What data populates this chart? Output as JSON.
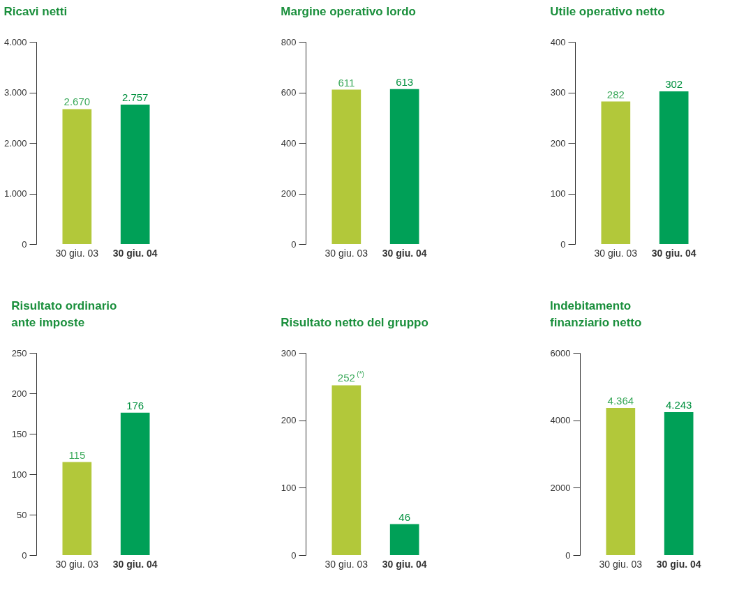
{
  "chart_data": [
    {
      "type": "bar",
      "title": "Ricavi netti",
      "categories": [
        "30 giu. 03",
        "30 giu. 04"
      ],
      "values": [
        2670,
        2757
      ],
      "colors": [
        "#b2c83a",
        "#00a057"
      ],
      "value_labels": [
        "2.670",
        "2.757"
      ],
      "ylim": [
        0,
        4000
      ],
      "yticks": [
        0,
        {
          "value": 1000,
          "label": "1.000"
        },
        {
          "value": 2000,
          "label": "2.000"
        },
        {
          "value": 3000,
          "label": "3.000"
        },
        {
          "value": 4000,
          "label": "4.000"
        }
      ]
    },
    {
      "type": "bar",
      "title": "Margine operativo lordo",
      "categories": [
        "30 giu. 03",
        "30 giu. 04"
      ],
      "values": [
        611,
        613
      ],
      "colors": [
        "#b2c83a",
        "#00a057"
      ],
      "value_labels": [
        "611",
        "613"
      ],
      "ylim": [
        0,
        800
      ],
      "yticks": [
        0,
        200,
        400,
        600,
        800
      ]
    },
    {
      "type": "bar",
      "title": "Utile operativo netto",
      "categories": [
        "30 giu. 03",
        "30 giu. 04"
      ],
      "values": [
        282,
        302
      ],
      "colors": [
        "#b2c83a",
        "#00a057"
      ],
      "value_labels": [
        "282",
        "302"
      ],
      "ylim": [
        0,
        400
      ],
      "yticks": [
        0,
        100,
        200,
        300,
        400
      ]
    },
    {
      "type": "bar",
      "title": "Risultato ordinario\nante imposte",
      "categories": [
        "30 giu. 03",
        "30 giu. 04"
      ],
      "values": [
        115,
        176
      ],
      "colors": [
        "#b2c83a",
        "#00a057"
      ],
      "value_labels": [
        "115",
        "176"
      ],
      "ylim": [
        0,
        250
      ],
      "yticks": [
        0,
        50,
        100,
        150,
        200,
        250
      ]
    },
    {
      "type": "bar",
      "title": "Risultato netto del gruppo",
      "categories": [
        "30 giu. 03",
        "30 giu. 04"
      ],
      "values": [
        252,
        46
      ],
      "colors": [
        "#b2c83a",
        "#00a057"
      ],
      "value_labels": [
        "252$^{(*)}$",
        "46"
      ],
      "ylim": [
        0,
        300
      ],
      "yticks": [
        0,
        100,
        200,
        300
      ]
    },
    {
      "type": "bar",
      "title": "Indebitamento\nfinanziario netto",
      "categories": [
        "30 giu. 03",
        "30 giu. 04"
      ],
      "values": [
        4364,
        4243
      ],
      "colors": [
        "#b2c83a",
        "#00a057"
      ],
      "value_labels": [
        "4.364",
        "4.243"
      ],
      "ylim": [
        0,
        6000
      ],
      "yticks": [
        0,
        2000,
        4000,
        6000
      ]
    }
  ]
}
